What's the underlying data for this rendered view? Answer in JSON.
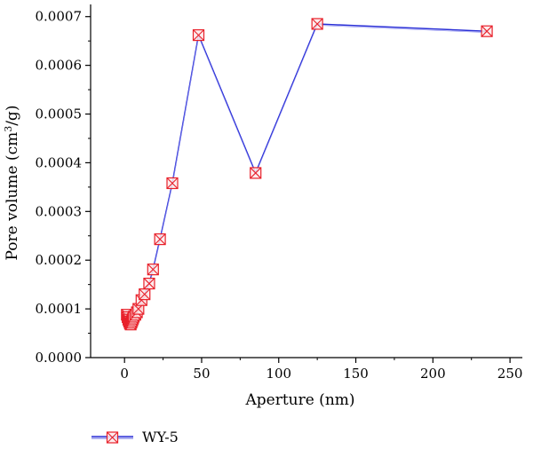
{
  "chart_data": {
    "type": "line",
    "xlabel": "Aperture (nm)",
    "ylabel_main": "Pore volume (cm",
    "ylabel_sup": "3",
    "ylabel_tail": "/g)",
    "xlim": [
      -22,
      258
    ],
    "ylim": [
      0,
      0.000725
    ],
    "x_ticks": [
      0,
      50,
      100,
      150,
      200,
      250
    ],
    "x_tick_labels": [
      "0",
      "50",
      "100",
      "150",
      "200",
      "250"
    ],
    "y_ticks": [
      0,
      0.0001,
      0.0002,
      0.0003,
      0.0004,
      0.0005,
      0.0006,
      0.0007
    ],
    "y_tick_labels": [
      "0.0000",
      "0.0001",
      "0.0002",
      "0.0003",
      "0.0004",
      "0.0005",
      "0.0006",
      "0.0007"
    ],
    "grid": false,
    "legend_position": "bottom-left",
    "colors": {
      "line": "#2a2fd6",
      "marker": "#e8202a"
    },
    "series": [
      {
        "name": "WY-5",
        "x": [
          1.5,
          2.0,
          2.5,
          3.0,
          3.5,
          4.0,
          4.5,
          5.0,
          5.5,
          6.0,
          7.0,
          8.0,
          9.0,
          11.0,
          13.0,
          16.0,
          18.5,
          23.0,
          31.0,
          48.0,
          85.0,
          125.0,
          235.0
        ],
        "y": [
          8.8e-05,
          8.3e-05,
          7.8e-05,
          7.4e-05,
          7e-05,
          6.8e-05,
          7.2e-05,
          7.6e-05,
          8e-05,
          8.4e-05,
          8.8e-05,
          9.3e-05,
          0.0001,
          0.000118,
          0.00013,
          0.000152,
          0.000181,
          0.000243,
          0.000358,
          0.000662,
          0.000379,
          0.000685,
          0.00067
        ]
      }
    ]
  }
}
